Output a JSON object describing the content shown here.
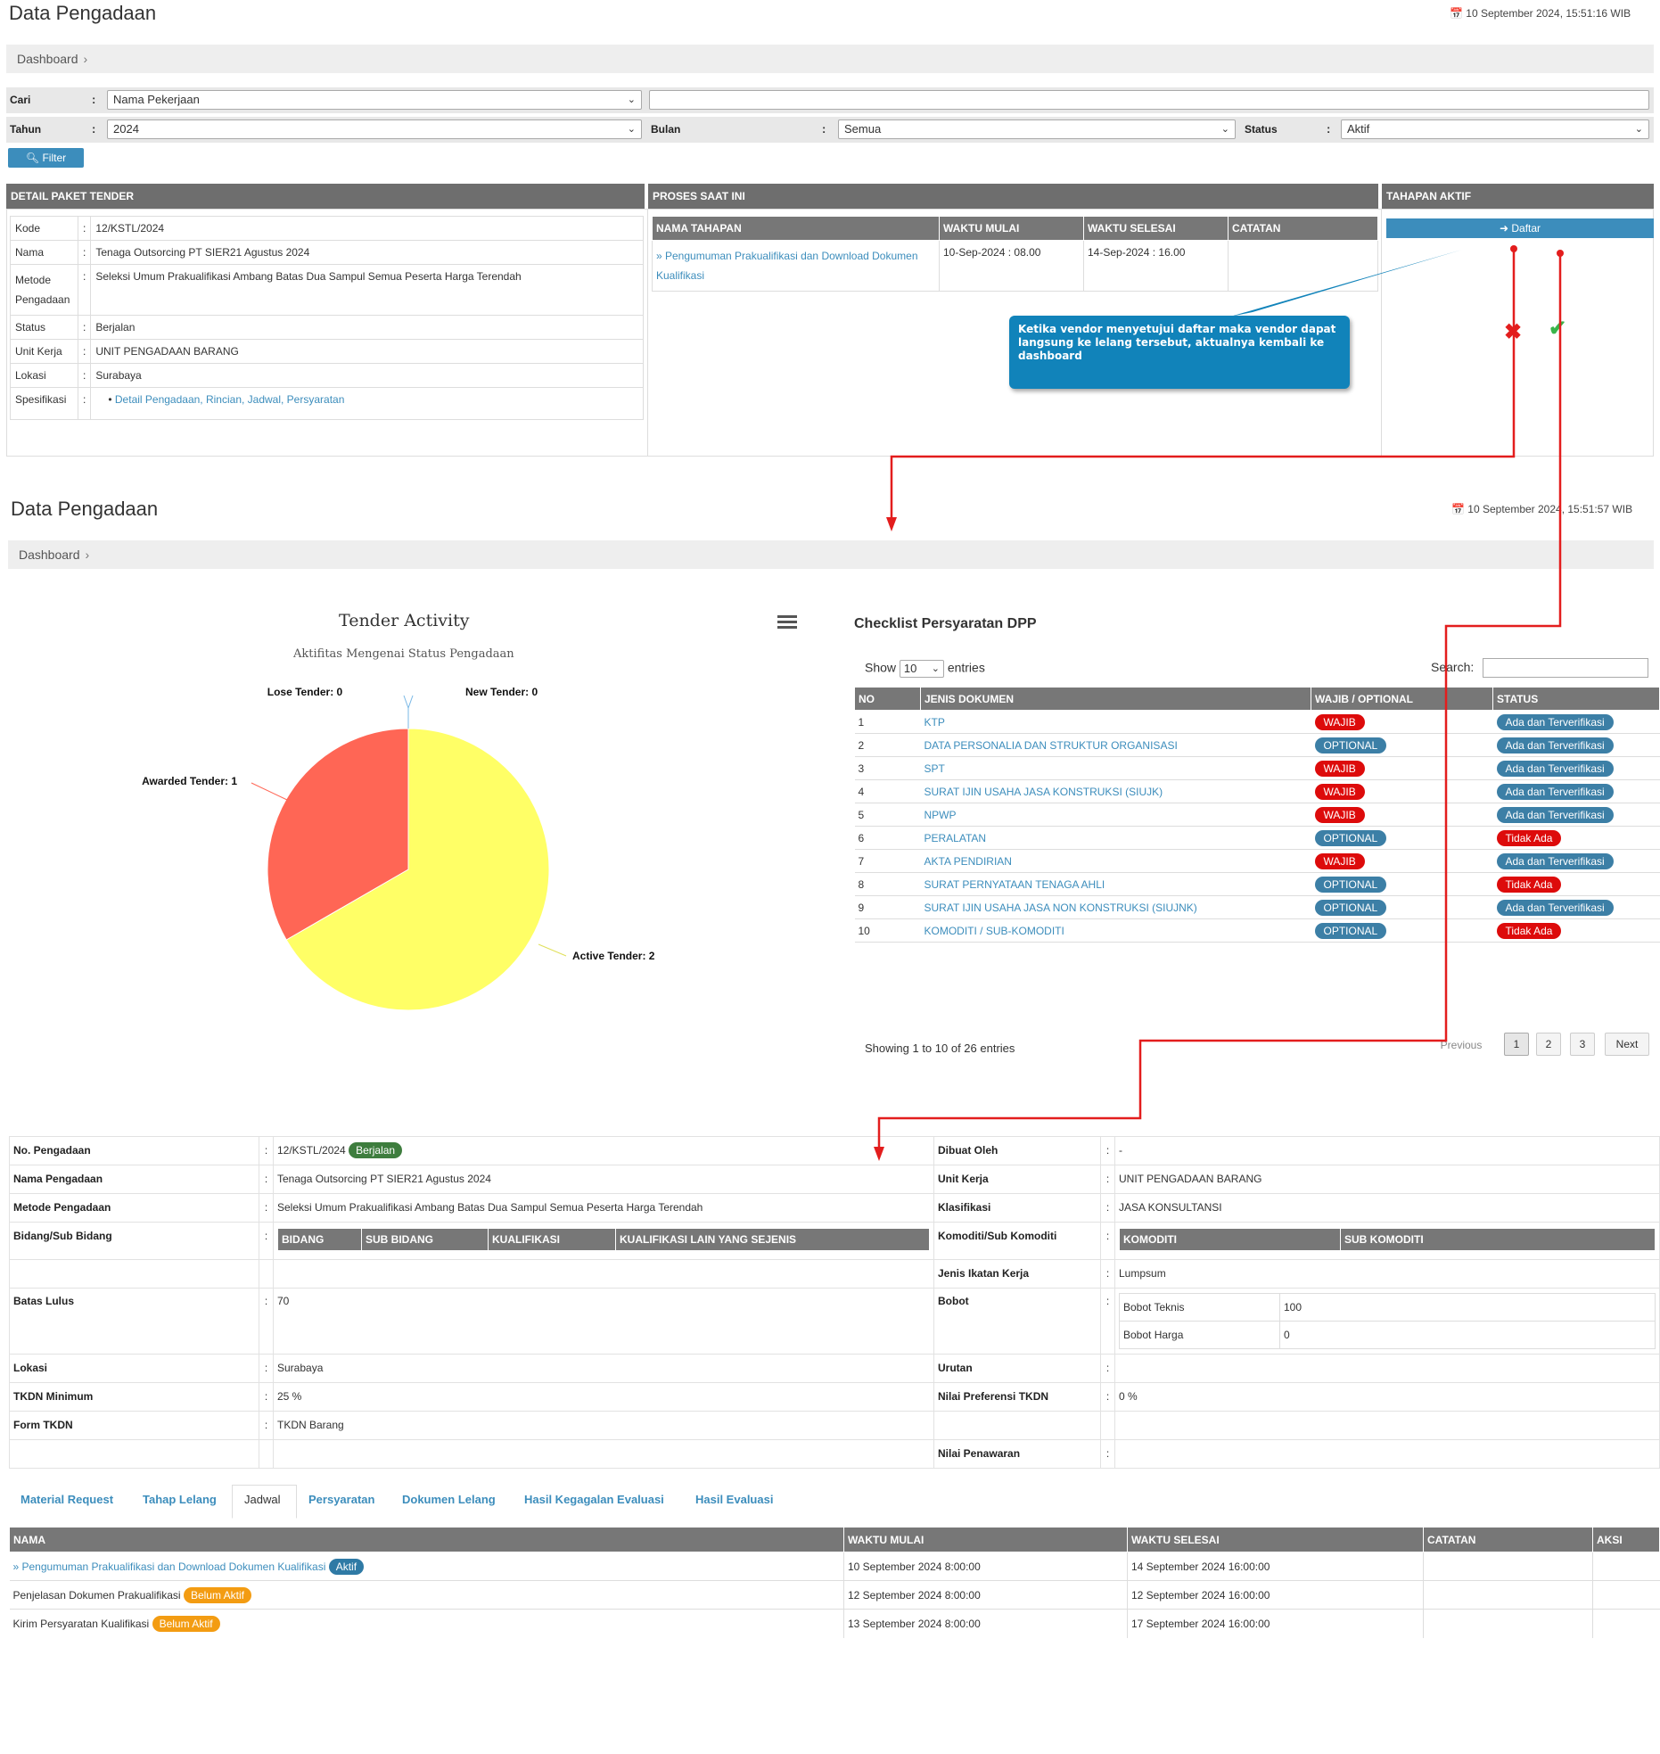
{
  "top": {
    "title": "Data Pengadaan",
    "datetime": "10 September 2024, 15:51:16 WIB",
    "breadcrumb": "Dashboard",
    "filter": {
      "cari_label": "Cari",
      "cari_value": "Nama Pekerjaan",
      "cari_text": "",
      "tahun_label": "Tahun",
      "tahun_value": "2024",
      "bulan_label": "Bulan",
      "bulan_value": "Semua",
      "status_label": "Status",
      "status_value": "Aktif",
      "colon": ":",
      "button": "Filter"
    },
    "detail_header": "DETAIL PAKET TENDER",
    "proses_header": "PROSES SAAT INI",
    "tahapan_header": "TAHAPAN AKTIF",
    "detail": [
      {
        "label": "Kode",
        "value": "12/KSTL/2024"
      },
      {
        "label": "Nama",
        "value": "Tenaga Outsorcing PT SIER21 Agustus 2024"
      },
      {
        "label": "Metode Pengadaan",
        "value": "Seleksi Umum Prakualifikasi Ambang Batas Dua Sampul Semua Peserta Harga Terendah"
      },
      {
        "label": "Status",
        "value": "Berjalan"
      },
      {
        "label": "Unit Kerja",
        "value": "UNIT PENGADAAN BARANG"
      },
      {
        "label": "Lokasi",
        "value": "Surabaya"
      },
      {
        "label": "Spesifikasi",
        "value": "Detail Pengadaan, Rincian, Jadwal, Persyaratan"
      }
    ],
    "proses_cols": [
      "NAMA TAHAPAN",
      "WAKTU MULAI",
      "WAKTU SELESAI",
      "CATATAN"
    ],
    "proses_row": {
      "nama": "» Pengumuman Prakualifikasi dan Download Dokumen Kualifikasi",
      "mulai": "10-Sep-2024 : 08.00",
      "selesai": "14-Sep-2024 : 16.00",
      "catatan": ""
    },
    "daftar_button": "Daftar",
    "callout": "Ketika vendor menyetujui daftar maka vendor dapat langsung ke lelang tersebut, aktualnya kembali ke dashboard"
  },
  "mid": {
    "title": "Data Pengadaan",
    "datetime": "10 September 2024, 15:51:57 WIB",
    "breadcrumb": "Dashboard"
  },
  "chart_data": {
    "type": "pie",
    "title": "Tender Activity",
    "subtitle": "Aktifitas Mengenai Status Pengadaan",
    "slices": [
      {
        "label": "Lose Tender: 0",
        "value": 0,
        "color": "#7ab8e6"
      },
      {
        "label": "New Tender: 0",
        "value": 0,
        "color": "#7ab8e6"
      },
      {
        "label": "Active Tender: 2",
        "value": 2,
        "color": "#ffff66"
      },
      {
        "label": "Awarded Tender: 1",
        "value": 1,
        "color": "#ff6655"
      }
    ]
  },
  "checklist": {
    "title": "Checklist Persyaratan DPP",
    "show_label": "Show",
    "show_value": "10",
    "entries_label": "entries",
    "search_label": "Search:",
    "columns": [
      "NO",
      "JENIS DOKUMEN",
      "WAJIB / OPTIONAL",
      "STATUS"
    ],
    "rows": [
      {
        "no": "1",
        "doc": "KTP",
        "req": "WAJIB",
        "status": "Ada dan Terverifikasi"
      },
      {
        "no": "2",
        "doc": "DATA PERSONALIA DAN STRUKTUR ORGANISASI",
        "req": "OPTIONAL",
        "status": "Ada dan Terverifikasi"
      },
      {
        "no": "3",
        "doc": "SPT",
        "req": "WAJIB",
        "status": "Ada dan Terverifikasi"
      },
      {
        "no": "4",
        "doc": "SURAT IJIN USAHA JASA KONSTRUKSI (SIUJK)",
        "req": "WAJIB",
        "status": "Ada dan Terverifikasi"
      },
      {
        "no": "5",
        "doc": "NPWP",
        "req": "WAJIB",
        "status": "Ada dan Terverifikasi"
      },
      {
        "no": "6",
        "doc": "PERALATAN",
        "req": "OPTIONAL",
        "status": "Tidak Ada"
      },
      {
        "no": "7",
        "doc": "AKTA PENDIRIAN",
        "req": "WAJIB",
        "status": "Ada dan Terverifikasi"
      },
      {
        "no": "8",
        "doc": "SURAT PERNYATAAN TENAGA AHLI",
        "req": "OPTIONAL",
        "status": "Tidak Ada"
      },
      {
        "no": "9",
        "doc": "SURAT IJIN USAHA JASA NON KONSTRUKSI (SIUJNK)",
        "req": "OPTIONAL",
        "status": "Ada dan Terverifikasi"
      },
      {
        "no": "10",
        "doc": "KOMODITI / SUB-KOMODITI",
        "req": "OPTIONAL",
        "status": "Tidak Ada"
      }
    ],
    "info": "Showing 1 to 10 of 26 entries",
    "prev": "Previous",
    "pages": [
      "1",
      "2",
      "3"
    ],
    "next": "Next"
  },
  "detail2": {
    "no_label": "No. Pengadaan",
    "no_value": "12/KSTL/2024",
    "no_badge": "Berjalan",
    "nama_label": "Nama Pengadaan",
    "nama_value": "Tenaga Outsorcing PT SIER21 Agustus 2024",
    "metode_label": "Metode Pengadaan",
    "metode_value": "Seleksi Umum Prakualifikasi Ambang Batas Dua Sampul Semua Peserta Harga Terendah",
    "bidang_label": "Bidang/Sub Bidang",
    "bidang_cols": [
      "BIDANG",
      "SUB BIDANG",
      "KUALIFIKASI",
      "KUALIFIKASI LAIN YANG SEJENIS"
    ],
    "batas_label": "Batas Lulus",
    "batas_value": "70",
    "lokasi_label": "Lokasi",
    "lokasi_value": "Surabaya",
    "tkdn_label": "TKDN Minimum",
    "tkdn_value": "25 %",
    "form_label": "Form TKDN",
    "form_value": "TKDN Barang",
    "dibuat_label": "Dibuat Oleh",
    "dibuat_value": "-",
    "unit_label": "Unit Kerja",
    "unit_value": "UNIT PENGADAAN BARANG",
    "klas_label": "Klasifikasi",
    "klas_value": "JASA KONSULTANSI",
    "komoditi_label": "Komoditi/Sub Komoditi",
    "komoditi_cols": [
      "KOMODITI",
      "SUB KOMODITI"
    ],
    "jenis_label": "Jenis Ikatan Kerja",
    "jenis_value": "Lumpsum",
    "bobot_label": "Bobot",
    "bobot_teknis_label": "Bobot Teknis",
    "bobot_teknis_value": "100",
    "bobot_harga_label": "Bobot Harga",
    "bobot_harga_value": "0",
    "urutan_label": "Urutan",
    "urutan_value": "",
    "nilai_pref_label": "Nilai Preferensi TKDN",
    "nilai_pref_value": "0 %",
    "nilai_pen_label": "Nilai Penawaran",
    "nilai_pen_value": "",
    "colon": ":"
  },
  "tabs": [
    "Material Request",
    "Tahap Lelang",
    "Jadwal",
    "Persyaratan",
    "Dokumen Lelang",
    "Hasil Kegagalan Evaluasi",
    "Hasil Evaluasi"
  ],
  "jadwal": {
    "columns": [
      "NAMA",
      "WAKTU MULAI",
      "WAKTU SELESAI",
      "CATATAN",
      "AKSI"
    ],
    "rows": [
      {
        "nama": "» Pengumuman Prakualifikasi dan Download Dokumen Kualifikasi",
        "badge": "Aktif",
        "mulai": "10 September 2024 8:00:00",
        "selesai": "14 September 2024 16:00:00"
      },
      {
        "nama": "Penjelasan Dokumen Prakualifikasi",
        "badge": "Belum Aktif",
        "mulai": "12 September 2024 8:00:00",
        "selesai": "12 September 2024 16:00:00"
      },
      {
        "nama": "Kirim Persyaratan Kualifikasi",
        "badge": "Belum Aktif",
        "mulai": "13 September 2024 8:00:00",
        "selesai": "17 September 2024 16:00:00"
      }
    ]
  }
}
